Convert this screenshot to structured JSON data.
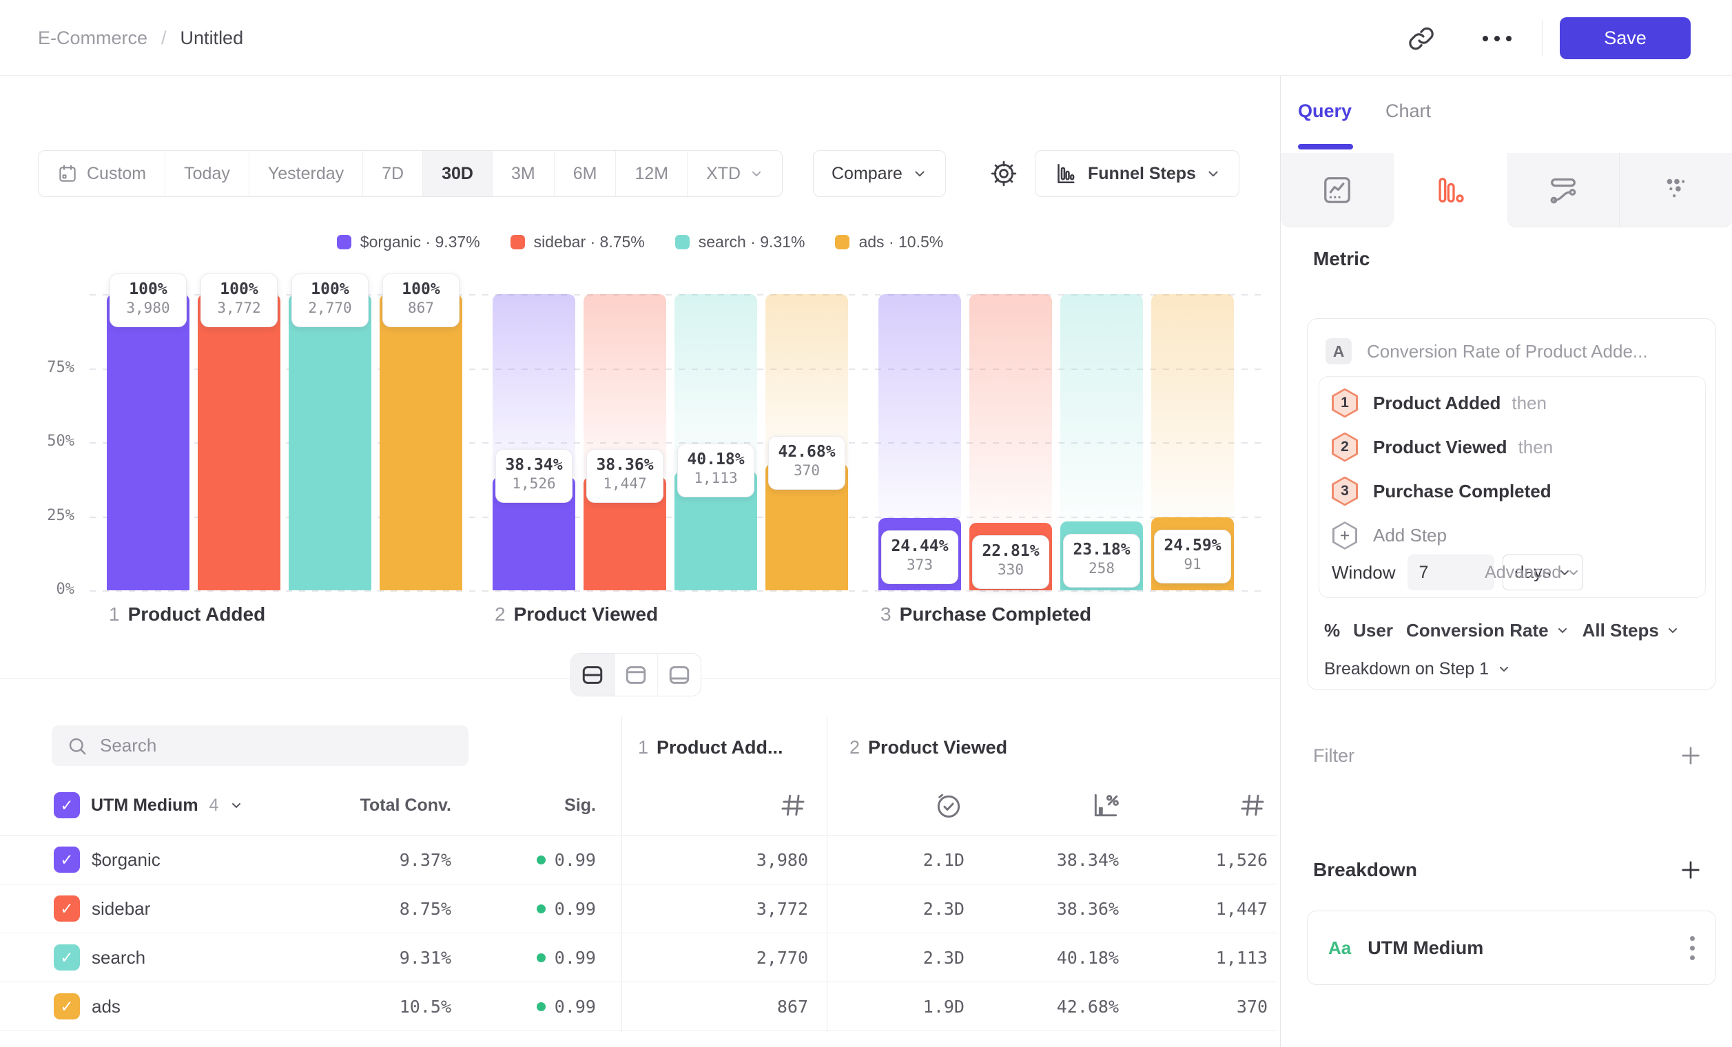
{
  "header": {
    "breadcrumb": {
      "parent": "E-Commerce",
      "separator": "/",
      "current": "Untitled"
    },
    "save_label": "Save"
  },
  "toolbar": {
    "ranges": [
      "Custom",
      "Today",
      "Yesterday",
      "7D",
      "30D",
      "3M",
      "6M",
      "12M",
      "XTD"
    ],
    "selected_range": "30D",
    "compare_label": "Compare",
    "view_label": "Funnel Steps"
  },
  "legend": [
    {
      "label": "$organic",
      "value": "9.37%",
      "color": "#7a58f6"
    },
    {
      "label": "sidebar",
      "value": "8.75%",
      "color": "#f8674e"
    },
    {
      "label": "search",
      "value": "9.31%",
      "color": "#7cdbd0"
    },
    {
      "label": "ads",
      "value": "10.5%",
      "color": "#f3b13e"
    }
  ],
  "chart_data": {
    "type": "bar",
    "subtype": "funnel-steps",
    "title": "",
    "ylim": [
      0,
      100
    ],
    "grid": "dashed-horizontal",
    "yticks": [
      {
        "label": "0%",
        "pct": 0
      },
      {
        "label": "25%",
        "pct": 25
      },
      {
        "label": "50%",
        "pct": 50
      },
      {
        "label": "75%",
        "pct": 75
      }
    ],
    "series": [
      "$organic",
      "sidebar",
      "search",
      "ads"
    ],
    "steps": [
      {
        "index": "1",
        "label": "Product Added",
        "bars": [
          {
            "series": "$organic",
            "pct": 100,
            "pct_label": "100%",
            "count_label": "3,980"
          },
          {
            "series": "sidebar",
            "pct": 100,
            "pct_label": "100%",
            "count_label": "3,772"
          },
          {
            "series": "search",
            "pct": 100,
            "pct_label": "100%",
            "count_label": "2,770"
          },
          {
            "series": "ads",
            "pct": 100,
            "pct_label": "100%",
            "count_label": "867"
          }
        ]
      },
      {
        "index": "2",
        "label": "Product Viewed",
        "bars": [
          {
            "series": "$organic",
            "pct": 38.34,
            "pct_label": "38.34%",
            "count_label": "1,526"
          },
          {
            "series": "sidebar",
            "pct": 38.36,
            "pct_label": "38.36%",
            "count_label": "1,447"
          },
          {
            "series": "search",
            "pct": 40.18,
            "pct_label": "40.18%",
            "count_label": "1,113"
          },
          {
            "series": "ads",
            "pct": 42.68,
            "pct_label": "42.68%",
            "count_label": "370"
          }
        ]
      },
      {
        "index": "3",
        "label": "Purchase Completed",
        "bars": [
          {
            "series": "$organic",
            "pct": 24.44,
            "pct_label": "24.44%",
            "count_label": "373"
          },
          {
            "series": "sidebar",
            "pct": 22.81,
            "pct_label": "22.81%",
            "count_label": "330"
          },
          {
            "series": "search",
            "pct": 23.18,
            "pct_label": "23.18%",
            "count_label": "258"
          },
          {
            "series": "ads",
            "pct": 24.59,
            "pct_label": "24.59%",
            "count_label": "91"
          }
        ]
      }
    ]
  },
  "view_toggle": {
    "options": [
      "split-view",
      "chart-only-view",
      "table-only-view"
    ],
    "selected": "split-view"
  },
  "table": {
    "search_placeholder": "Search",
    "breakdown_header": {
      "label": "UTM Medium",
      "count": "4"
    },
    "total_conv_header": "Total Conv.",
    "sig_header": "Sig.",
    "group_headers": [
      {
        "index": "1",
        "label": "Product Add..."
      },
      {
        "index": "2",
        "label": "Product Viewed"
      }
    ],
    "rows": [
      {
        "label": "$organic",
        "color": "#7a58f6",
        "total_conv": "9.37%",
        "sig": "0.99",
        "step1_count": "3,980",
        "avg_time": "2.1D",
        "conv_rate": "38.34%",
        "step2_count": "1,526"
      },
      {
        "label": "sidebar",
        "color": "#f8674e",
        "total_conv": "8.75%",
        "sig": "0.99",
        "step1_count": "3,772",
        "avg_time": "2.3D",
        "conv_rate": "38.36%",
        "step2_count": "1,447"
      },
      {
        "label": "search",
        "color": "#7cdbd0",
        "total_conv": "9.31%",
        "sig": "0.99",
        "step1_count": "2,770",
        "avg_time": "2.3D",
        "conv_rate": "40.18%",
        "step2_count": "1,113"
      },
      {
        "label": "ads",
        "color": "#f3b13e",
        "total_conv": "10.5%",
        "sig": "0.99",
        "step1_count": "867",
        "avg_time": "1.9D",
        "conv_rate": "42.68%",
        "step2_count": "370"
      }
    ]
  },
  "panel": {
    "tabs": {
      "query": "Query",
      "chart": "Chart",
      "active": "Query"
    },
    "chart_types": [
      {
        "icon": "line-chart-icon",
        "selected": false
      },
      {
        "icon": "funnel-bars-icon",
        "selected": true,
        "color": "#f8674e"
      },
      {
        "icon": "flow-icon",
        "selected": false
      },
      {
        "icon": "dots-grid-icon",
        "selected": false
      }
    ],
    "metric_heading": "Metric",
    "metric": {
      "letter": "A",
      "title": "Conversion Rate of Product Adde...",
      "steps": [
        {
          "num": "1",
          "name": "Product Added",
          "suffix": "then"
        },
        {
          "num": "2",
          "name": "Product Viewed",
          "suffix": "then"
        },
        {
          "num": "3",
          "name": "Purchase Completed",
          "suffix": ""
        }
      ],
      "add_step_label": "Add Step",
      "window": {
        "label": "Window",
        "value": "7",
        "unit": "days",
        "advanced_label": "Advanced"
      },
      "measure": {
        "symbol": "%",
        "entity": "User",
        "metric": "Conversion Rate",
        "scope": "All Steps"
      },
      "breakdown_on_label": "Breakdown on Step 1"
    },
    "filter": {
      "label": "Filter"
    },
    "breakdown": {
      "label": "Breakdown",
      "item": {
        "badge": "Aa",
        "badge_color": "#3cbd81",
        "name": "UTM Medium"
      }
    }
  },
  "colors": {
    "accent": "#4c40e0",
    "sig_dot": "#2fbe81",
    "hex_border": "#f08a6b",
    "hex_fill": "#fcdfd4"
  }
}
